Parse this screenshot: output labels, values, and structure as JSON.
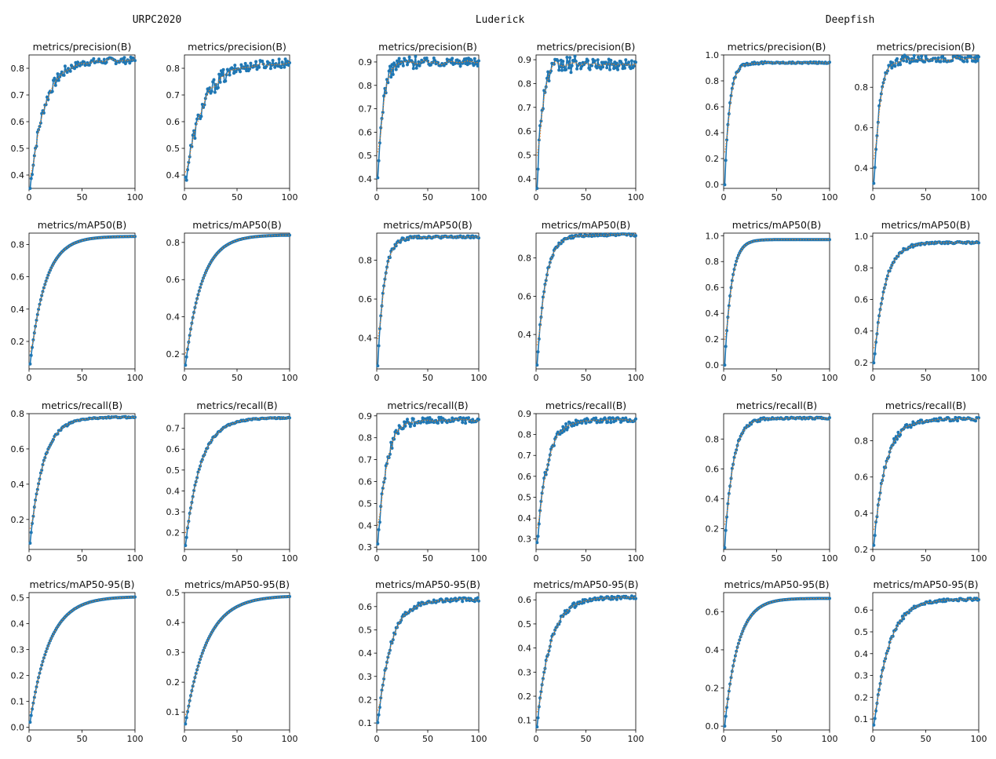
{
  "groups": [
    "URPC2020",
    "Luderick",
    "Deepfish"
  ],
  "colors": {
    "line": "#1f77b4",
    "smooth": "#ff7f0e",
    "axis": "#000000"
  },
  "chart_data": [
    {
      "type": "line",
      "title": "metrics/precision(B)",
      "ylim": [
        0.35,
        0.85
      ],
      "yticks": [
        0.4,
        0.5,
        0.6,
        0.7,
        0.8
      ],
      "ytick_labels": [
        "0.4",
        "0.5",
        "0.6",
        "0.7",
        "0.8"
      ],
      "xlim": [
        0,
        100
      ],
      "xticks": [
        0,
        50,
        100
      ],
      "xtick_labels": [
        "0",
        "50",
        "100"
      ],
      "start": 0.35,
      "end": 0.83,
      "k": 0.075,
      "noise": 0.012
    },
    {
      "type": "line",
      "title": "metrics/precision(B)",
      "ylim": [
        0.35,
        0.85
      ],
      "yticks": [
        0.4,
        0.5,
        0.6,
        0.7,
        0.8
      ],
      "ytick_labels": [
        "0.4",
        "0.5",
        "0.6",
        "0.7",
        "0.8"
      ],
      "xlim": [
        0,
        100
      ],
      "xticks": [
        0,
        50,
        100
      ],
      "xtick_labels": [
        "0",
        "50",
        "100"
      ],
      "start": 0.38,
      "end": 0.82,
      "k": 0.06,
      "noise": 0.018
    },
    {
      "type": "line",
      "title": "metrics/precision(B)",
      "ylim": [
        0.36,
        0.93
      ],
      "yticks": [
        0.4,
        0.5,
        0.6,
        0.7,
        0.8,
        0.9
      ],
      "ytick_labels": [
        "0.4",
        "0.5",
        "0.6",
        "0.7",
        "0.8",
        "0.9"
      ],
      "xlim": [
        0,
        100
      ],
      "xticks": [
        0,
        50,
        100
      ],
      "xtick_labels": [
        "0",
        "50",
        "100"
      ],
      "start": 0.38,
      "end": 0.9,
      "k": 0.2,
      "noise": 0.018
    },
    {
      "type": "line",
      "title": "metrics/precision(B)",
      "ylim": [
        0.36,
        0.92
      ],
      "yticks": [
        0.4,
        0.5,
        0.6,
        0.7,
        0.8,
        0.9
      ],
      "ytick_labels": [
        "0.4",
        "0.5",
        "0.6",
        "0.7",
        "0.8",
        "0.9"
      ],
      "xlim": [
        0,
        100
      ],
      "xticks": [
        0,
        50,
        100
      ],
      "xtick_labels": [
        "0",
        "50",
        "100"
      ],
      "start": 0.38,
      "end": 0.88,
      "k": 0.2,
      "noise": 0.022
    },
    {
      "type": "line",
      "title": "metrics/precision(B)",
      "ylim": [
        -0.03,
        1.0
      ],
      "yticks": [
        0.0,
        0.2,
        0.4,
        0.6,
        0.8,
        1.0
      ],
      "ytick_labels": [
        "0.0",
        "0.2",
        "0.4",
        "0.6",
        "0.8",
        "1.0"
      ],
      "xlim": [
        0,
        100
      ],
      "xticks": [
        0,
        50,
        100
      ],
      "xtick_labels": [
        "0",
        "50",
        "100"
      ],
      "start": 0.0,
      "end": 0.94,
      "k": 0.22,
      "noise": 0.006
    },
    {
      "type": "line",
      "title": "metrics/precision(B)",
      "ylim": [
        0.3,
        0.96
      ],
      "yticks": [
        0.4,
        0.6,
        0.8
      ],
      "ytick_labels": [
        "0.4",
        "0.6",
        "0.8"
      ],
      "xlim": [
        0,
        100
      ],
      "xticks": [
        0,
        50,
        100
      ],
      "xtick_labels": [
        "0",
        "50",
        "100"
      ],
      "start": 0.32,
      "end": 0.94,
      "k": 0.18,
      "noise": 0.014
    },
    {
      "type": "line",
      "title": "metrics/mAP50(B)",
      "ylim": [
        0.03,
        0.87
      ],
      "yticks": [
        0.2,
        0.4,
        0.6,
        0.8
      ],
      "ytick_labels": [
        "0.2",
        "0.4",
        "0.6",
        "0.8"
      ],
      "xlim": [
        0,
        100
      ],
      "xticks": [
        0,
        50,
        100
      ],
      "xtick_labels": [
        "0",
        "50",
        "100"
      ],
      "start": 0.06,
      "end": 0.85,
      "k": 0.07,
      "noise": 0.0
    },
    {
      "type": "line",
      "title": "metrics/mAP50(B)",
      "ylim": [
        0.12,
        0.85
      ],
      "yticks": [
        0.2,
        0.4,
        0.6,
        0.8
      ],
      "ytick_labels": [
        "0.2",
        "0.4",
        "0.6",
        "0.8"
      ],
      "xlim": [
        0,
        100
      ],
      "xticks": [
        0,
        50,
        100
      ],
      "xtick_labels": [
        "0",
        "50",
        "100"
      ],
      "start": 0.14,
      "end": 0.84,
      "k": 0.065,
      "noise": 0.0
    },
    {
      "type": "line",
      "title": "metrics/mAP50(B)",
      "ylim": [
        0.24,
        0.94
      ],
      "yticks": [
        0.4,
        0.6,
        0.8
      ],
      "ytick_labels": [
        "0.4",
        "0.6",
        "0.8"
      ],
      "xlim": [
        0,
        100
      ],
      "xticks": [
        0,
        50,
        100
      ],
      "xtick_labels": [
        "0",
        "50",
        "100"
      ],
      "start": 0.26,
      "end": 0.92,
      "k": 0.16,
      "noise": 0.006
    },
    {
      "type": "line",
      "title": "metrics/mAP50(B)",
      "ylim": [
        0.22,
        0.93
      ],
      "yticks": [
        0.4,
        0.6,
        0.8
      ],
      "ytick_labels": [
        "0.4",
        "0.6",
        "0.8"
      ],
      "xlim": [
        0,
        100
      ],
      "xticks": [
        0,
        50,
        100
      ],
      "xtick_labels": [
        "0",
        "50",
        "100"
      ],
      "start": 0.24,
      "end": 0.92,
      "k": 0.12,
      "noise": 0.006
    },
    {
      "type": "line",
      "title": "metrics/mAP50(B)",
      "ylim": [
        -0.03,
        1.02
      ],
      "yticks": [
        0.0,
        0.2,
        0.4,
        0.6,
        0.8,
        1.0
      ],
      "ytick_labels": [
        "0.0",
        "0.2",
        "0.4",
        "0.6",
        "0.8",
        "1.0"
      ],
      "xlim": [
        0,
        100
      ],
      "xticks": [
        0,
        50,
        100
      ],
      "xtick_labels": [
        "0",
        "50",
        "100"
      ],
      "start": 0.0,
      "end": 0.97,
      "k": 0.16,
      "noise": 0.0
    },
    {
      "type": "line",
      "title": "metrics/mAP50(B)",
      "ylim": [
        0.16,
        1.02
      ],
      "yticks": [
        0.2,
        0.4,
        0.6,
        0.8,
        1.0
      ],
      "ytick_labels": [
        "0.2",
        "0.4",
        "0.6",
        "0.8",
        "1.0"
      ],
      "xlim": [
        0,
        100
      ],
      "xticks": [
        0,
        50,
        100
      ],
      "xtick_labels": [
        "0",
        "50",
        "100"
      ],
      "start": 0.19,
      "end": 0.96,
      "k": 0.1,
      "noise": 0.006
    },
    {
      "type": "line",
      "title": "metrics/recall(B)",
      "ylim": [
        0.03,
        0.8
      ],
      "yticks": [
        0.2,
        0.4,
        0.6,
        0.8
      ],
      "ytick_labels": [
        "0.2",
        "0.4",
        "0.6",
        "0.8"
      ],
      "xlim": [
        0,
        100
      ],
      "xticks": [
        0,
        50,
        100
      ],
      "xtick_labels": [
        "0",
        "50",
        "100"
      ],
      "start": 0.07,
      "end": 0.78,
      "k": 0.08,
      "noise": 0.004
    },
    {
      "type": "line",
      "title": "metrics/recall(B)",
      "ylim": [
        0.12,
        0.77
      ],
      "yticks": [
        0.2,
        0.3,
        0.4,
        0.5,
        0.6,
        0.7
      ],
      "ytick_labels": [
        "0.2",
        "0.3",
        "0.4",
        "0.5",
        "0.6",
        "0.7"
      ],
      "xlim": [
        0,
        100
      ],
      "xticks": [
        0,
        50,
        100
      ],
      "xtick_labels": [
        "0",
        "50",
        "100"
      ],
      "start": 0.14,
      "end": 0.75,
      "k": 0.07,
      "noise": 0.003
    },
    {
      "type": "line",
      "title": "metrics/recall(B)",
      "ylim": [
        0.29,
        0.91
      ],
      "yticks": [
        0.3,
        0.4,
        0.5,
        0.6,
        0.7,
        0.8,
        0.9
      ],
      "ytick_labels": [
        "0.3",
        "0.4",
        "0.5",
        "0.6",
        "0.7",
        "0.8",
        "0.9"
      ],
      "xlim": [
        0,
        100
      ],
      "xticks": [
        0,
        50,
        100
      ],
      "xtick_labels": [
        "0",
        "50",
        "100"
      ],
      "start": 0.31,
      "end": 0.88,
      "k": 0.12,
      "noise": 0.014
    },
    {
      "type": "line",
      "title": "metrics/recall(B)",
      "ylim": [
        0.25,
        0.9
      ],
      "yticks": [
        0.3,
        0.4,
        0.5,
        0.6,
        0.7,
        0.8,
        0.9
      ],
      "ytick_labels": [
        "0.3",
        "0.4",
        "0.5",
        "0.6",
        "0.7",
        "0.8",
        "0.9"
      ],
      "xlim": [
        0,
        100
      ],
      "xticks": [
        0,
        50,
        100
      ],
      "xtick_labels": [
        "0",
        "50",
        "100"
      ],
      "start": 0.27,
      "end": 0.87,
      "k": 0.1,
      "noise": 0.012
    },
    {
      "type": "line",
      "title": "metrics/recall(B)",
      "ylim": [
        0.06,
        0.97
      ],
      "yticks": [
        0.2,
        0.4,
        0.6,
        0.8
      ],
      "ytick_labels": [
        "0.2",
        "0.4",
        "0.6",
        "0.8"
      ],
      "xlim": [
        0,
        100
      ],
      "xticks": [
        0,
        50,
        100
      ],
      "xtick_labels": [
        "0",
        "50",
        "100"
      ],
      "start": 0.08,
      "end": 0.94,
      "k": 0.13,
      "noise": 0.006
    },
    {
      "type": "line",
      "title": "metrics/recall(B)",
      "ylim": [
        0.2,
        0.95
      ],
      "yticks": [
        0.2,
        0.4,
        0.6,
        0.8
      ],
      "ytick_labels": [
        "0.2",
        "0.4",
        "0.6",
        "0.8"
      ],
      "xlim": [
        0,
        100
      ],
      "xticks": [
        0,
        50,
        100
      ],
      "xtick_labels": [
        "0",
        "50",
        "100"
      ],
      "start": 0.23,
      "end": 0.92,
      "k": 0.09,
      "noise": 0.01
    },
    {
      "type": "line",
      "title": "metrics/mAP50-95(B)",
      "ylim": [
        -0.01,
        0.52
      ],
      "yticks": [
        0.0,
        0.1,
        0.2,
        0.3,
        0.4,
        0.5
      ],
      "ytick_labels": [
        "0.0",
        "0.1",
        "0.2",
        "0.3",
        "0.4",
        "0.5"
      ],
      "xlim": [
        0,
        100
      ],
      "xticks": [
        0,
        50,
        100
      ],
      "xtick_labels": [
        "0",
        "50",
        "100"
      ],
      "start": 0.02,
      "end": 0.505,
      "k": 0.055,
      "noise": 0.0
    },
    {
      "type": "line",
      "title": "metrics/mAP50-95(B)",
      "ylim": [
        0.04,
        0.5
      ],
      "yticks": [
        0.1,
        0.2,
        0.3,
        0.4,
        0.5
      ],
      "ytick_labels": [
        "0.1",
        "0.2",
        "0.3",
        "0.4",
        "0.5"
      ],
      "xlim": [
        0,
        100
      ],
      "xticks": [
        0,
        50,
        100
      ],
      "xtick_labels": [
        "0",
        "50",
        "100"
      ],
      "start": 0.06,
      "end": 0.49,
      "k": 0.05,
      "noise": 0.0
    },
    {
      "type": "line",
      "title": "metrics/mAP50-95(B)",
      "ylim": [
        0.07,
        0.66
      ],
      "yticks": [
        0.1,
        0.2,
        0.3,
        0.4,
        0.5,
        0.6
      ],
      "ytick_labels": [
        "0.1",
        "0.2",
        "0.3",
        "0.4",
        "0.5",
        "0.6"
      ],
      "xlim": [
        0,
        100
      ],
      "xticks": [
        0,
        50,
        100
      ],
      "xtick_labels": [
        "0",
        "50",
        "100"
      ],
      "start": 0.09,
      "end": 0.63,
      "k": 0.08,
      "noise": 0.008
    },
    {
      "type": "line",
      "title": "metrics/mAP50-95(B)",
      "ylim": [
        0.06,
        0.63
      ],
      "yticks": [
        0.1,
        0.2,
        0.3,
        0.4,
        0.5,
        0.6
      ],
      "ytick_labels": [
        "0.1",
        "0.2",
        "0.3",
        "0.4",
        "0.5",
        "0.6"
      ],
      "xlim": [
        0,
        100
      ],
      "xticks": [
        0,
        50,
        100
      ],
      "xtick_labels": [
        "0",
        "50",
        "100"
      ],
      "start": 0.08,
      "end": 0.61,
      "k": 0.075,
      "noise": 0.007
    },
    {
      "type": "line",
      "title": "metrics/mAP50-95(B)",
      "ylim": [
        -0.02,
        0.7
      ],
      "yticks": [
        0.0,
        0.2,
        0.4,
        0.6
      ],
      "ytick_labels": [
        "0.0",
        "0.2",
        "0.4",
        "0.6"
      ],
      "xlim": [
        0,
        100
      ],
      "xticks": [
        0,
        50,
        100
      ],
      "xtick_labels": [
        "0",
        "50",
        "100"
      ],
      "start": 0.0,
      "end": 0.67,
      "k": 0.08,
      "noise": 0.0
    },
    {
      "type": "line",
      "title": "metrics/mAP50-95(B)",
      "ylim": [
        0.05,
        0.68
      ],
      "yticks": [
        0.1,
        0.2,
        0.3,
        0.4,
        0.5,
        0.6
      ],
      "ytick_labels": [
        "0.1",
        "0.2",
        "0.3",
        "0.4",
        "0.5",
        "0.6"
      ],
      "xlim": [
        0,
        100
      ],
      "xticks": [
        0,
        50,
        100
      ],
      "xtick_labels": [
        "0",
        "50",
        "100"
      ],
      "start": 0.07,
      "end": 0.65,
      "k": 0.07,
      "noise": 0.006
    }
  ]
}
